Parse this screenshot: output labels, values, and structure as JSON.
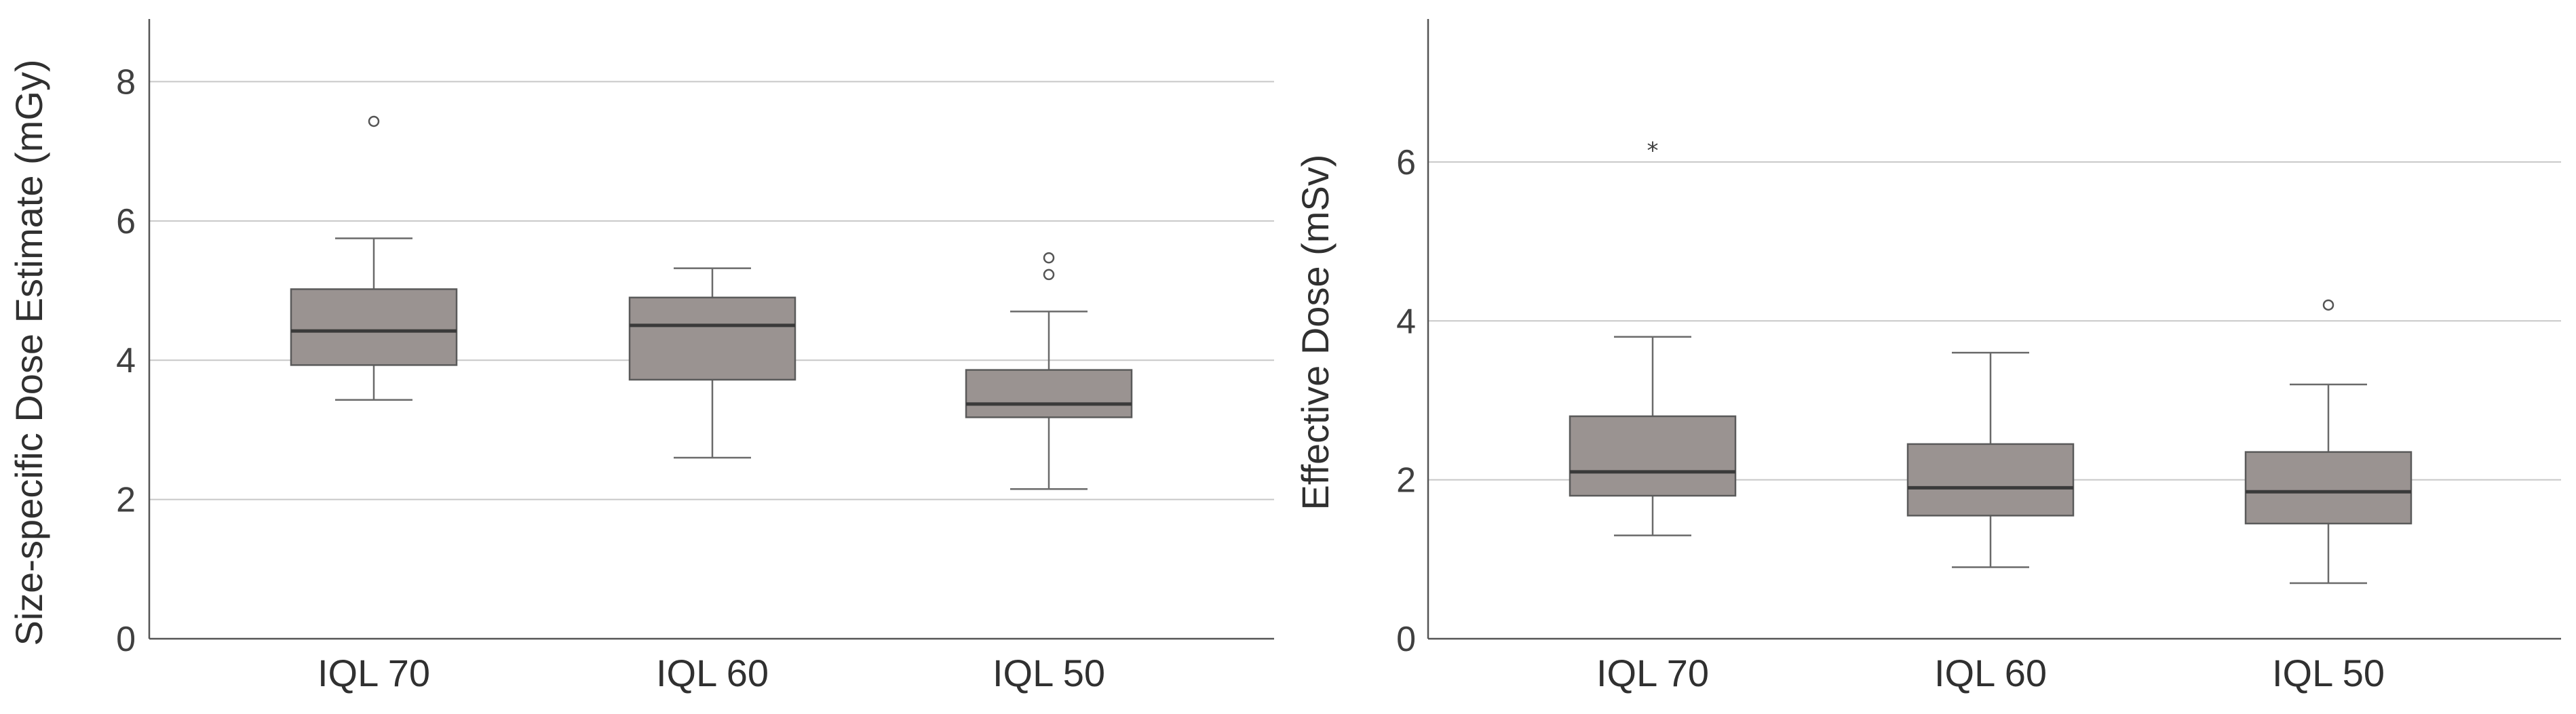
{
  "chart_data": [
    {
      "type": "box",
      "title": "",
      "xlabel": "",
      "ylabel": "Size-specific Dose Estimate (mGy)",
      "ylim": [
        0,
        8.9
      ],
      "yticks": [
        0,
        2,
        4,
        6,
        8
      ],
      "grid": true,
      "categories": [
        "IQL 70",
        "IQL 60",
        "IQL 50"
      ],
      "boxes": [
        {
          "category": "IQL 70",
          "whisker_low": 3.43,
          "q1": 3.93,
          "median": 4.42,
          "q3": 5.02,
          "whisker_high": 5.75,
          "outliers": [
            7.43
          ],
          "extremes": []
        },
        {
          "category": "IQL 60",
          "whisker_low": 2.6,
          "q1": 3.72,
          "median": 4.5,
          "q3": 4.9,
          "whisker_high": 5.32,
          "outliers": [],
          "extremes": []
        },
        {
          "category": "IQL 50",
          "whisker_low": 2.15,
          "q1": 3.18,
          "median": 3.37,
          "q3": 3.86,
          "whisker_high": 4.7,
          "outliers": [
            5.23,
            5.47
          ],
          "extremes": []
        }
      ]
    },
    {
      "type": "box",
      "title": "",
      "xlabel": "",
      "ylabel": "Effective Dose (mSv)",
      "ylim": [
        0,
        7.8
      ],
      "yticks": [
        0,
        2,
        4,
        6
      ],
      "grid": true,
      "categories": [
        "IQL 70",
        "IQL 60",
        "IQL 50"
      ],
      "boxes": [
        {
          "category": "IQL 70",
          "whisker_low": 1.3,
          "q1": 1.8,
          "median": 2.1,
          "q3": 2.8,
          "whisker_high": 3.8,
          "outliers": [],
          "extremes": [
            6.2
          ]
        },
        {
          "category": "IQL 60",
          "whisker_low": 0.9,
          "q1": 1.55,
          "median": 1.9,
          "q3": 2.45,
          "whisker_high": 3.6,
          "outliers": [],
          "extremes": []
        },
        {
          "category": "IQL 50",
          "whisker_low": 0.7,
          "q1": 1.45,
          "median": 1.85,
          "q3": 2.35,
          "whisker_high": 3.2,
          "outliers": [
            4.2
          ],
          "extremes": []
        }
      ]
    }
  ]
}
